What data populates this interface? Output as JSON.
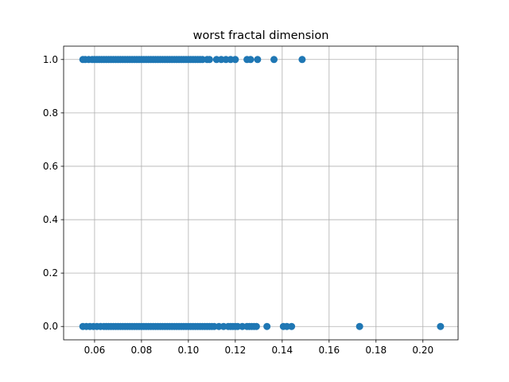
{
  "chart_data": {
    "type": "scatter",
    "title": "worst fractal dimension",
    "xlabel": "",
    "ylabel": "",
    "xlim": [
      0.0468,
      0.215
    ],
    "ylim": [
      -0.05,
      1.05
    ],
    "x_ticks": [
      0.06,
      0.08,
      0.1,
      0.12,
      0.14,
      0.16,
      0.18,
      0.2
    ],
    "x_tick_labels": [
      "0.06",
      "0.08",
      "0.10",
      "0.12",
      "0.14",
      "0.16",
      "0.18",
      "0.20"
    ],
    "y_ticks": [
      0.0,
      0.2,
      0.4,
      0.6,
      0.8,
      1.0
    ],
    "y_tick_labels": [
      "0.0",
      "0.2",
      "0.4",
      "0.6",
      "0.8",
      "1.0"
    ],
    "grid": true,
    "marker_color": "#1f77b4",
    "series": [
      {
        "values_at_y1": [
          0.055,
          0.056,
          0.0575,
          0.059,
          0.06,
          0.061,
          0.062,
          0.063,
          0.064,
          0.065,
          0.066,
          0.067,
          0.068,
          0.069,
          0.07,
          0.071,
          0.072,
          0.073,
          0.074,
          0.075,
          0.076,
          0.077,
          0.078,
          0.079,
          0.08,
          0.081,
          0.082,
          0.083,
          0.084,
          0.085,
          0.086,
          0.087,
          0.088,
          0.089,
          0.09,
          0.091,
          0.092,
          0.093,
          0.094,
          0.095,
          0.096,
          0.097,
          0.098,
          0.099,
          0.1,
          0.101,
          0.102,
          0.103,
          0.104,
          0.105,
          0.106,
          0.108,
          0.109,
          0.112,
          0.114,
          0.116,
          0.118,
          0.12,
          0.125,
          0.1265,
          0.1295,
          0.1365,
          0.1485
        ],
        "values_at_y0": [
          0.055,
          0.0565,
          0.058,
          0.0595,
          0.061,
          0.0625,
          0.064,
          0.065,
          0.066,
          0.067,
          0.068,
          0.069,
          0.07,
          0.071,
          0.072,
          0.073,
          0.074,
          0.075,
          0.076,
          0.077,
          0.078,
          0.079,
          0.08,
          0.081,
          0.082,
          0.083,
          0.084,
          0.085,
          0.086,
          0.087,
          0.088,
          0.089,
          0.09,
          0.091,
          0.092,
          0.093,
          0.094,
          0.095,
          0.096,
          0.097,
          0.098,
          0.099,
          0.1,
          0.101,
          0.102,
          0.103,
          0.104,
          0.105,
          0.106,
          0.107,
          0.108,
          0.109,
          0.11,
          0.111,
          0.113,
          0.115,
          0.117,
          0.118,
          0.119,
          0.12,
          0.121,
          0.123,
          0.125,
          0.126,
          0.127,
          0.128,
          0.129,
          0.1335,
          0.1405,
          0.142,
          0.144,
          0.173,
          0.2075
        ]
      }
    ]
  }
}
